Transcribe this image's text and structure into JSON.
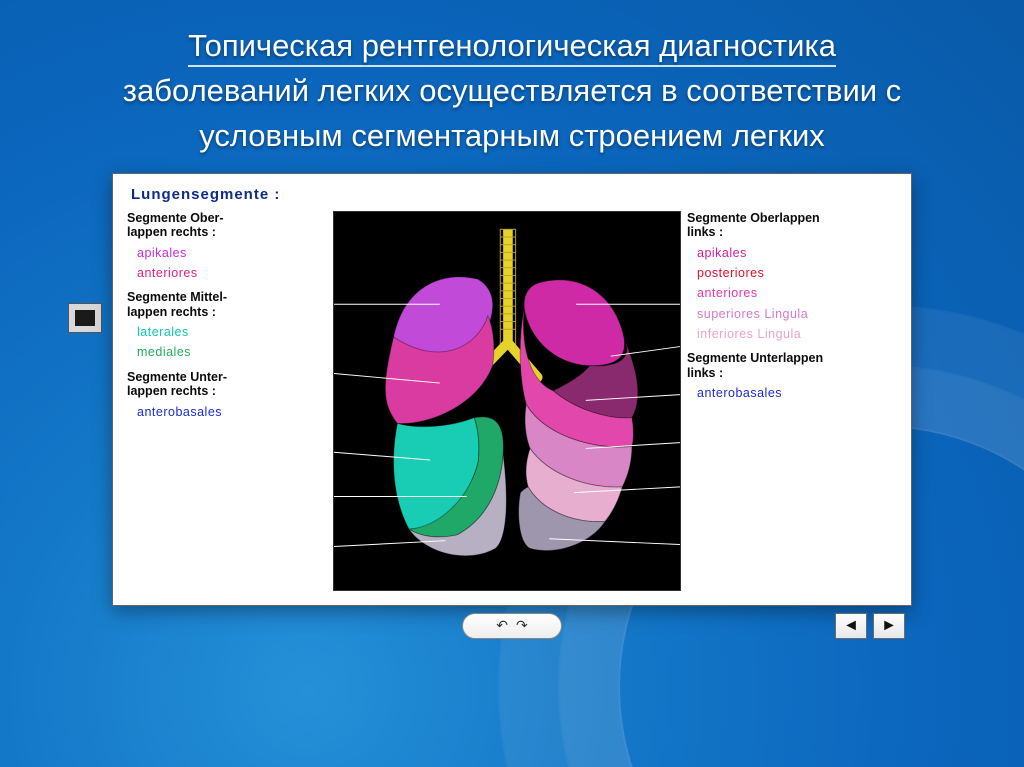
{
  "title": {
    "line1": "Топическая рентгенологическая диагностика",
    "rest": "заболеваний легких осуществляется в соответствии с условным сегментарным строением легких",
    "color": "#ffffff",
    "fontsize": 31
  },
  "figure": {
    "heading": "Lungensegmente :",
    "heading_color": "#102a8a",
    "background": "#ffffff",
    "panel_bg": "#000000",
    "left": {
      "groups": [
        {
          "head": "Segmente Ober-\nlappen rechts :",
          "head_color": "#0b0b0b",
          "items": [
            {
              "label": "apikales",
              "color": "#c22bde"
            },
            {
              "label": "anteriores",
              "color": "#e11f86"
            }
          ]
        },
        {
          "head": "Segmente Mittel-\nlappen rechts :",
          "head_color": "#0b0b0b",
          "items": [
            {
              "label": "laterales",
              "color": "#12c9b0"
            },
            {
              "label": "mediales",
              "color": "#1fae63"
            }
          ]
        },
        {
          "head": "Segmente Unter-\nlappen rechts :",
          "head_color": "#0b0b0b",
          "items": [
            {
              "label": "anterobasales",
              "color": "#1a2bd6"
            }
          ]
        }
      ]
    },
    "right": {
      "groups": [
        {
          "head": "Segmente Oberlappen\nlinks :",
          "head_color": "#0b0b0b",
          "items": [
            {
              "label": "apikales",
              "color": "#d21f9e"
            },
            {
              "label": "posteriores",
              "color": "#e10f2f"
            },
            {
              "label": "anteriores",
              "color": "#e43aa2"
            },
            {
              "label": "superiores Lingula",
              "color": "#d878c8"
            },
            {
              "label": "inferiores Lingula",
              "color": "#e9a6c8"
            }
          ]
        },
        {
          "head": "Segmente Unterlappen\nlinks :",
          "head_color": "#0b0b0b",
          "items": [
            {
              "label": "anterobasales",
              "color": "#1a2bd6"
            }
          ]
        }
      ]
    },
    "lungs": {
      "trachea_color": "#e6d22a",
      "right_lung": {
        "apikales": "#c24ad8",
        "anteriores": "#d93ba0",
        "laterales": "#18cdb4",
        "mediales": "#1fa868",
        "basal": "#b7b0c3"
      },
      "left_lung": {
        "apikales": "#cf2aa5",
        "posteriores": "#8a2a6e",
        "anteriores": "#e248ac",
        "sup_lingula": "#d886c6",
        "inf_lingula": "#e8aed0",
        "basal": "#9e96ad"
      },
      "leader_color": "#ffffff"
    },
    "nav": {
      "prev": "◄",
      "next": "►",
      "flip_left": "↶",
      "flip_right": "↷"
    }
  },
  "slide_bg": {
    "gradient_inner": "#2590d8",
    "gradient_outer": "#095aa8"
  }
}
